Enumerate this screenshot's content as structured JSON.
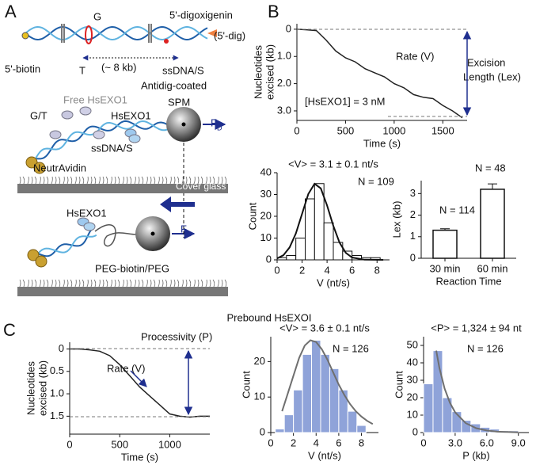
{
  "panel_labels": [
    "A",
    "B",
    "C"
  ],
  "panel_a": {
    "g": "G",
    "t": "T",
    "dig": "5'-digoxigenin",
    "dig_short": "(5'-dig)",
    "biotin": "5'-biotin",
    "ssdna_top": "ssDNA/S",
    "length": "(~ 8 kb)",
    "spm_coat": "Antidig-coated",
    "spm": "SPM",
    "free": "Free HsEXO1",
    "hsexo1_top": "HsEXO1",
    "gt": "G/T",
    "ssdna_mid": "ssDNA/S",
    "force_top": "F",
    "force_top_sub": "D",
    "neutravidin": "NeutrAvidin",
    "glass": "Cover glass",
    "hsexo1_bottom": "HsEXO1",
    "force_bottom": "F",
    "force_bottom_sub": "D",
    "peg": "PEG-biotin/PEG"
  },
  "panel_c_title": "Prebound HsEXOI",
  "chart_data": [
    {
      "type": "line",
      "xlabel": "Time (s)",
      "ylabel": [
        "Nucleotides",
        "excised (kb)"
      ],
      "annotations": [
        "Rate (V)",
        "[HsEXO1] = 3 nM",
        "Excision",
        "Length (Lex)"
      ],
      "x": [
        0,
        100,
        200,
        300,
        400,
        500,
        600,
        700,
        800,
        900,
        1000,
        1100,
        1200,
        1300,
        1400,
        1500,
        1600,
        1700
      ],
      "series": [
        {
          "color": "#222222",
          "values": [
            0,
            0.02,
            0.05,
            0.4,
            0.8,
            1.05,
            1.2,
            1.45,
            1.6,
            1.75,
            2.0,
            2.15,
            2.4,
            2.5,
            2.55,
            2.8,
            3.0,
            3.25
          ]
        }
      ],
      "xlim": [
        0,
        1750
      ],
      "xticks": [
        0,
        500,
        1000,
        1500
      ],
      "ylim": [
        -0.2,
        3.35
      ],
      "y_inverted": true,
      "yticks": [
        0,
        {
          "value": 1,
          "label": "1.0"
        },
        {
          "value": 2,
          "label": "2.0"
        },
        {
          "value": 3,
          "label": "3.0"
        }
      ]
    },
    {
      "type": "histogram",
      "title": "<V> = 3.1 ± 0.1 nt/s",
      "annotations": [
        "N = 109"
      ],
      "xlabel": "V (nt/s)",
      "ylabel": "Count",
      "bins": [
        0,
        0.75,
        1.5,
        2.25,
        3,
        3.75,
        4.5,
        5.25,
        6,
        6.75,
        7.5,
        8.25
      ],
      "counts": [
        1,
        2,
        10,
        28,
        35,
        17,
        8,
        4,
        2,
        1,
        1
      ],
      "color": "#ffffff",
      "edge_color": "#111111",
      "fit_color": "#111111",
      "fit": {
        "x": [
          0,
          0.5,
          1,
          1.5,
          2,
          2.5,
          3,
          3.5,
          4,
          4.5,
          5,
          5.5,
          6,
          7,
          8.5
        ],
        "y": [
          0.66,
          2.1,
          5.7,
          12.1,
          21.2,
          30.2,
          34.9,
          32.8,
          25,
          15.6,
          7.9,
          3.2,
          1.1,
          0.07,
          0
        ]
      },
      "xlim": [
        0,
        9
      ],
      "xticks": [
        0,
        2,
        4,
        6,
        8
      ],
      "ylim": [
        0,
        40
      ],
      "yticks": [
        0,
        10,
        20,
        30,
        40
      ]
    },
    {
      "type": "bar",
      "xlabel": "Reaction Time",
      "ylabel": "Lex (kb)",
      "categories": [
        "30 min",
        "60 min"
      ],
      "values": [
        1.3,
        3.2
      ],
      "errors": [
        0.07,
        0.25
      ],
      "annotations": [
        "N = 114",
        "N = 48"
      ],
      "color": "#ffffff",
      "edge_color": "#111111",
      "ylim": [
        0,
        3.6
      ],
      "yticks": [
        0,
        1,
        2,
        3
      ]
    },
    {
      "type": "line",
      "xlabel": "Time (s)",
      "ylabel": [
        "Nucleotides",
        "excised (kb)"
      ],
      "annotations": [
        "Processivity (P)",
        "Rate (V)"
      ],
      "x": [
        0,
        100,
        200,
        300,
        400,
        500,
        600,
        700,
        800,
        900,
        1000,
        1100,
        1200,
        1300,
        1400
      ],
      "series": [
        {
          "color": "#222222",
          "values": [
            0,
            0,
            0.02,
            0.05,
            0.15,
            0.35,
            0.6,
            0.85,
            1.05,
            1.25,
            1.45,
            1.5,
            1.52,
            1.5,
            1.5
          ]
        }
      ],
      "xlim": [
        0,
        1400
      ],
      "xticks": [
        0,
        500,
        1000
      ],
      "ylim": [
        -0.15,
        1.9
      ],
      "y_inverted": true,
      "yticks": [
        0,
        0.5,
        {
          "value": 1,
          "label": "1.0"
        },
        1.5
      ]
    },
    {
      "type": "histogram",
      "title": "<V> = 3.6 ± 0.1 nt/s",
      "annotations": [
        "N = 126"
      ],
      "xlabel": "V (nt/s)",
      "ylabel": "Count",
      "bins": [
        0.4,
        1.2,
        2.0,
        2.8,
        3.6,
        4.4,
        5.2,
        6.0,
        6.8,
        7.6,
        8.4
      ],
      "counts": [
        1,
        5,
        12,
        22,
        26,
        22,
        18,
        12,
        6,
        2
      ],
      "color": "#8fa3d9",
      "edge_color": "#ffffff",
      "fit_color": "#6f6f6f",
      "fit": {
        "x": [
          1,
          1.5,
          2,
          2.5,
          3,
          3.5,
          4,
          4.5,
          5,
          5.5,
          6,
          6.5,
          7,
          7.5,
          8,
          8.5,
          9
        ],
        "y": [
          6,
          11,
          16,
          21,
          24.5,
          26,
          25.5,
          23.5,
          20.5,
          17,
          13.5,
          10.5,
          8,
          6,
          4.5,
          3.3,
          2.4
        ]
      },
      "xlim": [
        0,
        9.5
      ],
      "xticks": [
        0,
        2,
        4,
        6,
        8
      ],
      "ylim": [
        0,
        27
      ],
      "yticks": [
        0,
        10,
        20
      ]
    },
    {
      "type": "histogram",
      "title": "<P> = 1,324 ± 94 nt",
      "annotations": [
        "N = 126"
      ],
      "xlabel": "P (kb)",
      "ylabel": "Count",
      "bins": [
        0,
        0.9,
        1.8,
        2.7,
        3.6,
        4.5,
        5.4,
        6.3,
        7.2,
        8.1,
        9.0
      ],
      "counts": [
        28,
        47,
        20,
        12,
        7,
        5,
        3,
        2,
        1,
        1
      ],
      "color": "#8fa3d9",
      "edge_color": "#ffffff",
      "fit_color": "#6f6f6f",
      "fit": {
        "x": [
          1.2,
          1.5,
          2,
          2.5,
          3,
          4,
          5,
          6,
          7,
          8,
          9
        ],
        "y": [
          47,
          37.1,
          25.2,
          17.1,
          11.6,
          5.4,
          2.5,
          1.2,
          0.5,
          0.3,
          0.1
        ]
      },
      "xlim": [
        0,
        10
      ],
      "xticks": [
        0,
        {
          "value": 3,
          "label": "3.0"
        },
        {
          "value": 6,
          "label": "6.0"
        },
        {
          "value": 9,
          "label": "9.0"
        }
      ],
      "ylim": [
        0,
        55
      ],
      "yticks": [
        0,
        10,
        20,
        30,
        40,
        50
      ]
    }
  ]
}
